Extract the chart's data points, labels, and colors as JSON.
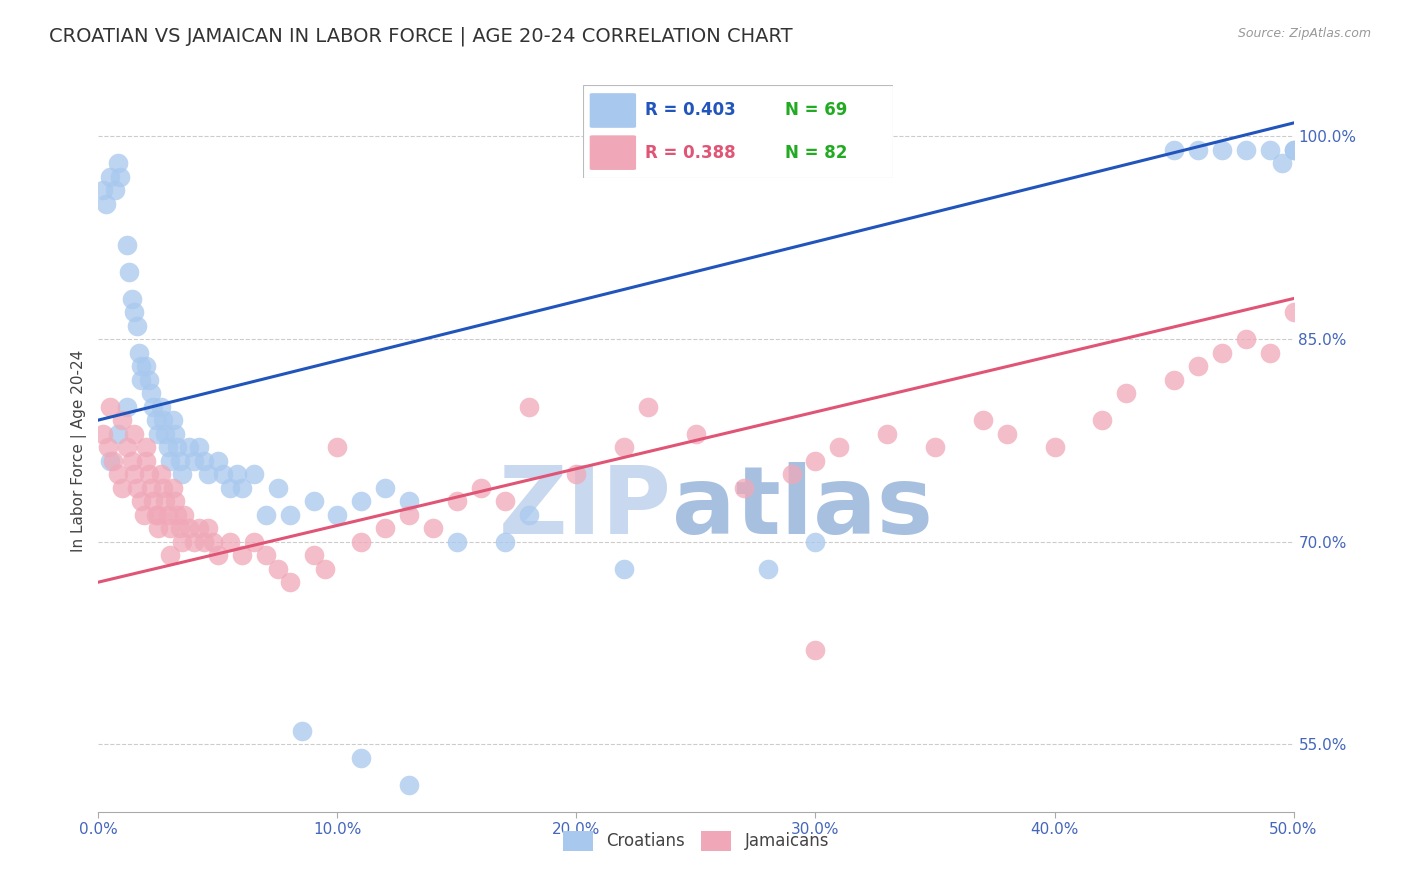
{
  "title": "CROATIAN VS JAMAICAN IN LABOR FORCE | AGE 20-24 CORRELATION CHART",
  "source_text": "Source: ZipAtlas.com",
  "ylabel": "In Labor Force | Age 20-24",
  "xlim": [
    0.0,
    0.5
  ],
  "ylim": [
    0.5,
    1.035
  ],
  "xticks": [
    0.0,
    0.1,
    0.2,
    0.3,
    0.4,
    0.5
  ],
  "xtick_labels": [
    "0.0%",
    "10.0%",
    "20.0%",
    "30.0%",
    "40.0%",
    "50.0%"
  ],
  "yticks_right": [
    0.55,
    0.7,
    0.85,
    1.0
  ],
  "ytick_labels_right": [
    "55.0%",
    "70.0%",
    "85.0%",
    "100.0%"
  ],
  "grid_yticks": [
    0.55,
    0.7,
    0.85,
    1.0
  ],
  "blue_color": "#A8C8EE",
  "pink_color": "#F0A8B8",
  "blue_line_color": "#2255BB",
  "pink_line_color": "#E05575",
  "legend_R_blue": "R = 0.403",
  "legend_N_blue": "N = 69",
  "legend_R_pink": "R = 0.388",
  "legend_N_pink": "N = 82",
  "legend_R_blue_color": "#2255BB",
  "legend_N_blue_color": "#22AA22",
  "legend_R_pink_color": "#E05575",
  "legend_N_pink_color": "#22AA22",
  "watermark_zip": "ZIP",
  "watermark_atlas": "atlas",
  "watermark_zip_color": "#C8D8EE",
  "watermark_atlas_color": "#A8C0E0",
  "blue_trend_x": [
    0.0,
    0.5
  ],
  "blue_trend_y": [
    0.79,
    1.01
  ],
  "pink_trend_x": [
    0.0,
    0.5
  ],
  "pink_trend_y": [
    0.67,
    0.88
  ]
}
